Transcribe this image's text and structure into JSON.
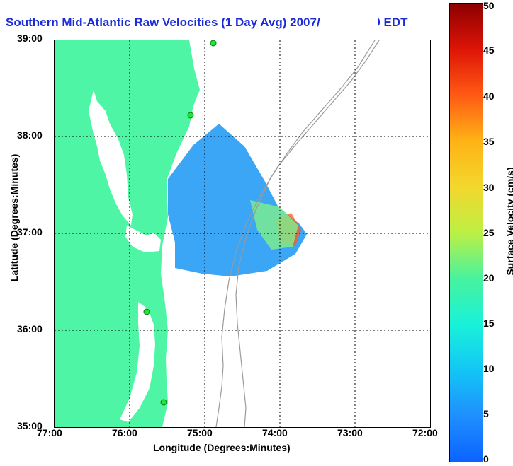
{
  "title": "Southern Mid-Atlantic Raw Velocities (1 Day Avg) 2007/10/21 0300 EDT",
  "axes": {
    "xlabel": "Longitude (Degrees:Minutes)",
    "ylabel": "Latitude (Degrees:Minutes)",
    "xticks": [
      "77:00",
      "76:00",
      "75:00",
      "74:00",
      "73:00",
      "72:00"
    ],
    "yticks": [
      "39:00",
      "38:00",
      "37:00",
      "36:00",
      "35:00"
    ]
  },
  "colorbar": {
    "label": "Surface Velocity (cm/s)",
    "ticks": [
      "50",
      "45",
      "40",
      "35",
      "30",
      "25",
      "20",
      "15",
      "10",
      "5",
      "0"
    ]
  },
  "colors": {
    "land": "#4df5a4",
    "title": "#1b2bd8",
    "grid": "#000000",
    "bathymetry": "#9a9a9a",
    "stations": "#22e33a"
  }
}
